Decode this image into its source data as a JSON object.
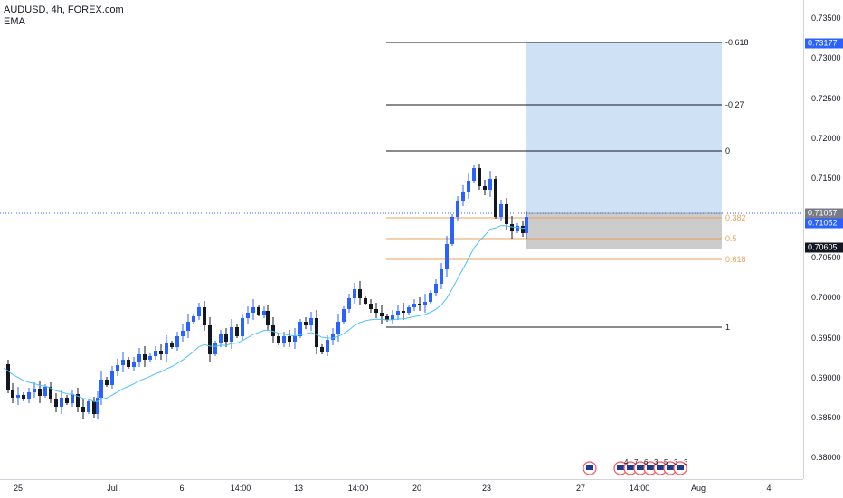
{
  "legend": {
    "symbol": "AUDUSD, 4h, FOREX.com",
    "indicator": "EMA"
  },
  "price_axis": {
    "ticks": [
      "0.73500",
      "0.73000",
      "0.72500",
      "0.72000",
      "0.71500",
      "0.70500",
      "0.70000",
      "0.69500",
      "0.69000",
      "0.68500",
      "0.68000"
    ],
    "tags": [
      {
        "text": "0.73177",
        "color": "#2962ff"
      },
      {
        "text": "0.71057",
        "color": "#787b86"
      },
      {
        "text": "0.71052",
        "color": "#2962ff"
      },
      {
        "text": "0.70605",
        "color": "#131722"
      }
    ]
  },
  "time_axis": {
    "ticks": [
      "25",
      "Jul",
      "6",
      "14:00",
      "13",
      "14:00",
      "20",
      "23",
      "27",
      "14:00",
      "Aug",
      "4"
    ]
  },
  "fib_levels": [
    {
      "label": "-0.618",
      "color": "#131722"
    },
    {
      "label": "-0.27",
      "color": "#131722"
    },
    {
      "label": "0",
      "color": "#131722"
    },
    {
      "label": "0.382",
      "color": "#e8a15c"
    },
    {
      "label": "0.5",
      "color": "#e8a15c"
    },
    {
      "label": "0.618",
      "color": "#e8a15c"
    },
    {
      "label": "1",
      "color": "#131722"
    }
  ],
  "events": {
    "labels": [
      "4",
      "7",
      "6",
      "3",
      "5",
      "3",
      "3"
    ]
  },
  "colors": {
    "up": "#2962ff",
    "down": "#131722",
    "ema": "#4fc3f7",
    "target_zone": "#cfe2f5",
    "stop_zone": "#cccccc",
    "price_line": "#2962ff"
  }
}
